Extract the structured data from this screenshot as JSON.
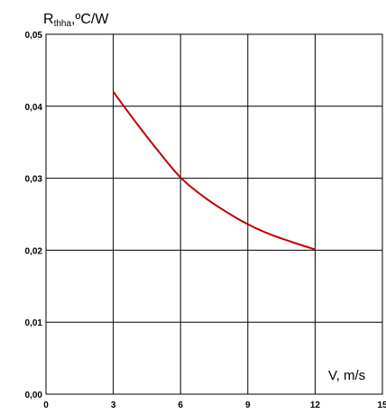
{
  "chart_data": {
    "type": "line",
    "ylabel": {
      "main": "R",
      "sub": "thha",
      "unit": ",ºC/W"
    },
    "xlabel": "V, m/s",
    "xlim": [
      0,
      15
    ],
    "ylim": [
      0,
      0.05
    ],
    "x_ticks": [
      "0",
      "3",
      "6",
      "9",
      "12",
      "15"
    ],
    "y_ticks": [
      "0,00",
      "0,01",
      "0,02",
      "0,03",
      "0,04",
      "0,05"
    ],
    "grid": true,
    "legend": "none",
    "series": [
      {
        "color": "#c00000",
        "x": [
          3,
          4,
          5,
          6,
          7,
          8,
          9,
          10,
          11,
          12
        ],
        "y": [
          0.042,
          0.0378,
          0.0338,
          0.0301,
          0.0275,
          0.0254,
          0.0236,
          0.0222,
          0.0211,
          0.0201
        ]
      }
    ]
  }
}
